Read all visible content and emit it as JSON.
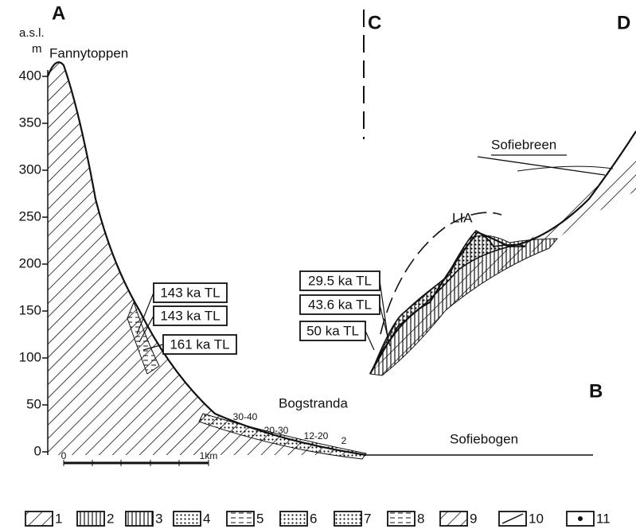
{
  "sections": [
    "A",
    "B",
    "C",
    "D"
  ],
  "axis": {
    "unit_top": "a.s.l.",
    "unit": "m",
    "ticks": [
      0,
      50,
      100,
      150,
      200,
      250,
      300,
      350,
      400
    ]
  },
  "places": [
    "Fannytoppen",
    "Bogstranda",
    "Sofiebogen",
    "Sofiebreen",
    "LIA"
  ],
  "dates": [
    "143 ka TL",
    "143 ka TL",
    "161 ka TL",
    "29.5 ka TL",
    "43.6 ka TL",
    "50 ka TL"
  ],
  "thickness_labels": [
    "30-40",
    "20-30",
    "12-20",
    "2"
  ],
  "scale": [
    "0",
    "1km"
  ],
  "legend": [
    "1",
    "2",
    "3",
    "4",
    "5",
    "6",
    "7",
    "8",
    "9",
    "10",
    "11"
  ]
}
